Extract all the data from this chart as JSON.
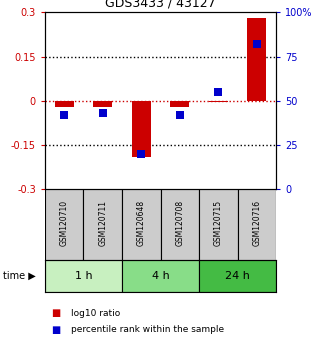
{
  "title": "GDS3433 / 43127",
  "samples": [
    "GSM120710",
    "GSM120711",
    "GSM120648",
    "GSM120708",
    "GSM120715",
    "GSM120716"
  ],
  "log10_ratio": [
    -0.02,
    -0.02,
    -0.19,
    -0.02,
    -0.005,
    0.28
  ],
  "percentile_rank": [
    42,
    43,
    20,
    42,
    55,
    82
  ],
  "time_groups": [
    {
      "label": "1 h",
      "start": 0,
      "end": 2,
      "color": "#c8f0c0"
    },
    {
      "label": "4 h",
      "start": 2,
      "end": 4,
      "color": "#88dd88"
    },
    {
      "label": "24 h",
      "start": 4,
      "end": 6,
      "color": "#44bb44"
    }
  ],
  "bar_color": "#cc0000",
  "dot_color": "#0000cc",
  "ylim_left": [
    -0.3,
    0.3
  ],
  "ylim_right": [
    0,
    100
  ],
  "yticks_left": [
    -0.3,
    -0.15,
    0,
    0.15,
    0.3
  ],
  "yticks_right": [
    0,
    25,
    50,
    75,
    100
  ],
  "ytick_labels_left": [
    "-0.3",
    "-0.15",
    "0",
    "0.15",
    "0.3"
  ],
  "ytick_labels_right": [
    "0",
    "25",
    "50",
    "75",
    "100%"
  ],
  "hlines": [
    0.15,
    -0.15
  ],
  "sample_box_color": "#cccccc",
  "bar_width": 0.5,
  "dot_size": 30
}
